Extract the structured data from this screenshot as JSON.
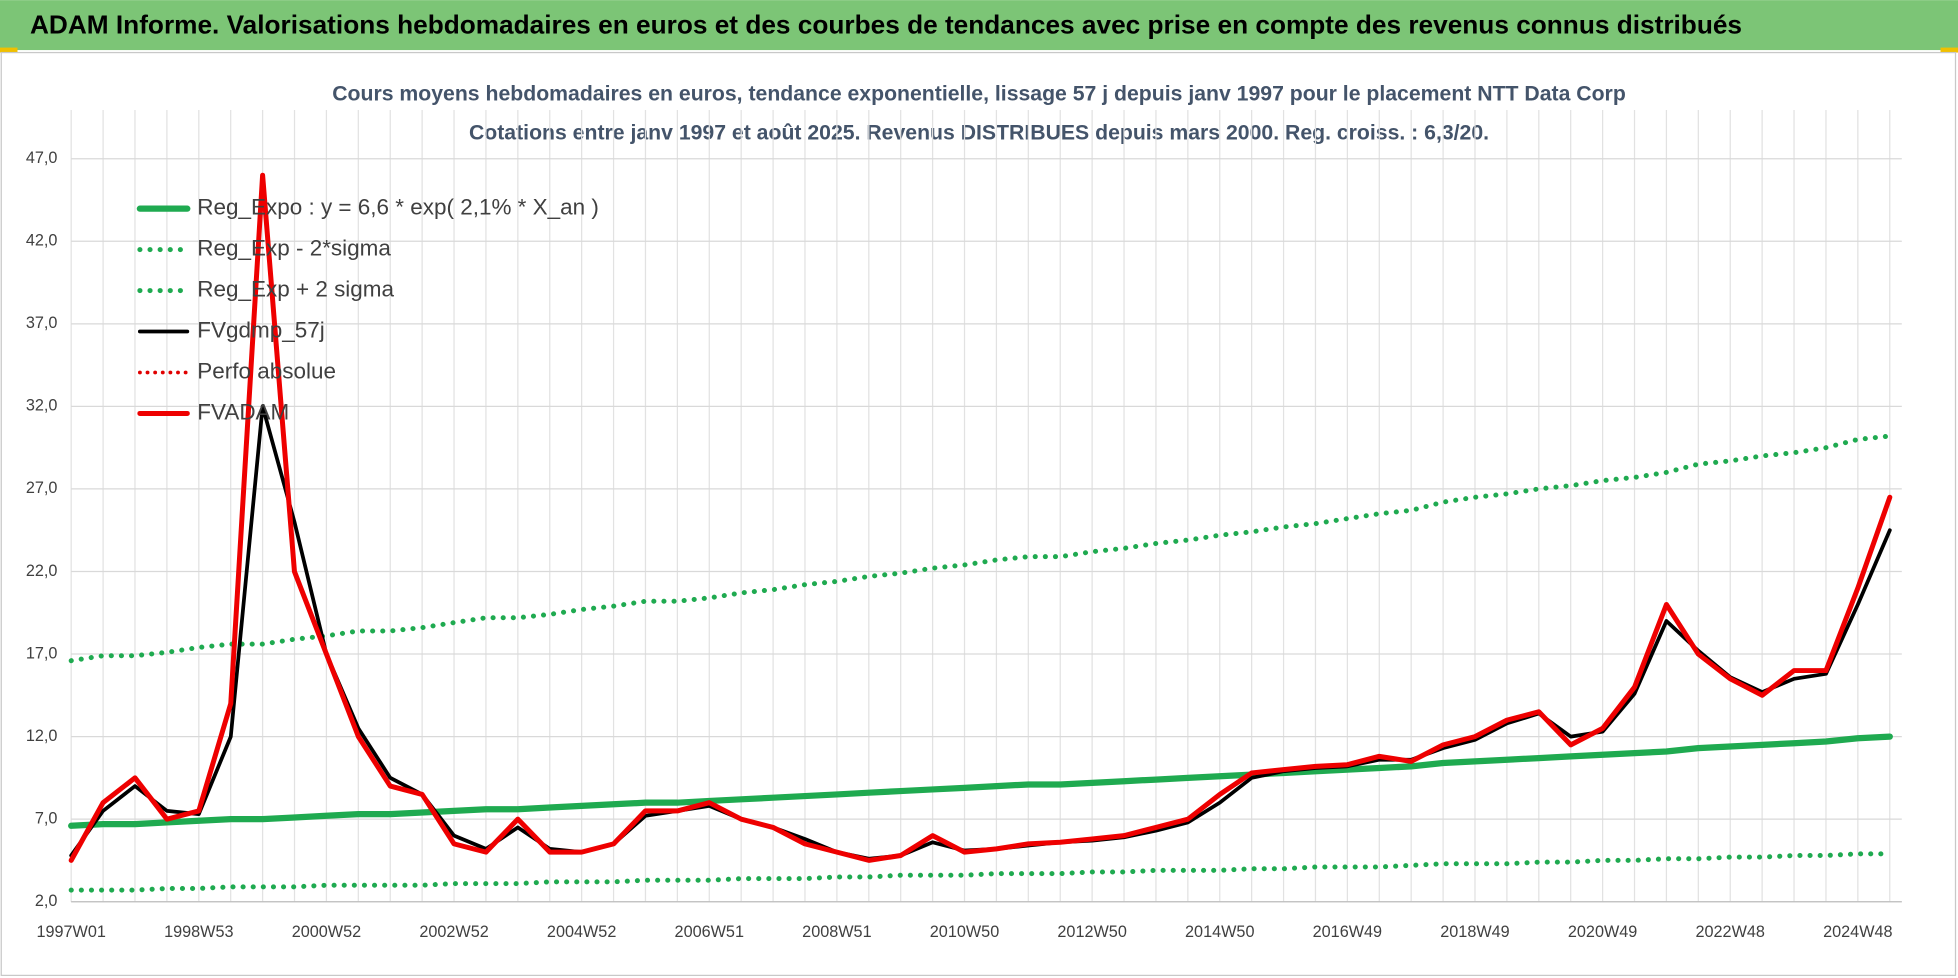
{
  "header": {
    "title": "ADAM Informe. Valorisations hebdomadaires en euros et des courbes de tendances avec prise en compte des revenus connus distribués"
  },
  "chart_data": {
    "type": "line",
    "title": "Cours moyens hebdomadaires en euros, tendance exponentielle, lissage 57 j depuis janv 1997 pour le placement NTT Data Corp",
    "subtitle": "Cotations entre janv 1997 et août 2025.  Revenus DISTRIBUES depuis mars 2000. Reg. croiss. : 6,3/20.",
    "categories": [
      "1997W01",
      null,
      null,
      null,
      "1998W53",
      null,
      null,
      null,
      "2000W52",
      null,
      null,
      null,
      "2002W52",
      null,
      null,
      null,
      "2004W52",
      null,
      null,
      null,
      "2006W51",
      null,
      null,
      null,
      "2008W51",
      null,
      null,
      null,
      "2010W50",
      null,
      null,
      null,
      "2012W50",
      null,
      null,
      null,
      "2014W50",
      null,
      null,
      null,
      "2016W49",
      null,
      null,
      null,
      "2018W49",
      null,
      null,
      null,
      "2020W49",
      null,
      null,
      null,
      "2022W48",
      null,
      null,
      null,
      "2024W48",
      null
    ],
    "ylim": [
      2,
      47
    ],
    "yticks": [
      {
        "value": 2,
        "label": "2,0"
      },
      {
        "value": 7,
        "label": "7,0"
      },
      {
        "value": 12,
        "label": "12,0"
      },
      {
        "value": 17,
        "label": "17,0"
      },
      {
        "value": 22,
        "label": "22,0"
      },
      {
        "value": 27,
        "label": "27,0"
      },
      {
        "value": 32,
        "label": "32,0"
      },
      {
        "value": 37,
        "label": "37,0"
      },
      {
        "value": 42,
        "label": "42,0"
      },
      {
        "value": 47,
        "label": "47,0"
      }
    ],
    "grid": true,
    "legend": "top-left",
    "series": [
      {
        "name": "Reg_Expo : y = 6,6 * exp( 2,1% *  X_an )",
        "color": "#1faa50",
        "dash": "solid",
        "width": 5,
        "values": [
          6.6,
          6.7,
          6.7,
          6.8,
          6.9,
          7.0,
          7.0,
          7.1,
          7.2,
          7.3,
          7.3,
          7.4,
          7.5,
          7.6,
          7.6,
          7.7,
          7.8,
          7.9,
          8.0,
          8.0,
          8.1,
          8.2,
          8.3,
          8.4,
          8.5,
          8.6,
          8.7,
          8.8,
          8.9,
          9.0,
          9.1,
          9.1,
          9.2,
          9.3,
          9.4,
          9.5,
          9.6,
          9.7,
          9.8,
          9.9,
          10.0,
          10.1,
          10.2,
          10.4,
          10.5,
          10.6,
          10.7,
          10.8,
          10.9,
          11.0,
          11.1,
          11.3,
          11.4,
          11.5,
          11.6,
          11.7,
          11.9,
          12.0
        ]
      },
      {
        "name": "Reg_Exp - 2*sigma",
        "color": "#1faa50",
        "dash": "dotted",
        "width": 4,
        "values": [
          2.7,
          2.7,
          2.7,
          2.8,
          2.8,
          2.9,
          2.9,
          2.9,
          3.0,
          3.0,
          3.0,
          3.0,
          3.1,
          3.1,
          3.1,
          3.2,
          3.2,
          3.2,
          3.3,
          3.3,
          3.3,
          3.4,
          3.4,
          3.4,
          3.5,
          3.5,
          3.6,
          3.6,
          3.6,
          3.7,
          3.7,
          3.7,
          3.8,
          3.8,
          3.9,
          3.9,
          3.9,
          4.0,
          4.0,
          4.1,
          4.1,
          4.1,
          4.2,
          4.3,
          4.3,
          4.3,
          4.4,
          4.4,
          4.5,
          4.5,
          4.6,
          4.6,
          4.7,
          4.7,
          4.8,
          4.8,
          4.9,
          4.9
        ]
      },
      {
        "name": "Reg_Exp + 2 sigma",
        "color": "#1faa50",
        "dash": "dotted",
        "width": 4,
        "values": [
          16.6,
          16.9,
          16.9,
          17.1,
          17.4,
          17.6,
          17.6,
          17.9,
          18.1,
          18.4,
          18.4,
          18.6,
          18.9,
          19.2,
          19.2,
          19.4,
          19.7,
          19.9,
          20.2,
          20.2,
          20.4,
          20.7,
          20.9,
          21.2,
          21.4,
          21.7,
          21.9,
          22.2,
          22.4,
          22.7,
          22.9,
          22.9,
          23.2,
          23.4,
          23.7,
          23.9,
          24.2,
          24.4,
          24.7,
          24.9,
          25.2,
          25.5,
          25.7,
          26.2,
          26.5,
          26.7,
          27.0,
          27.2,
          27.5,
          27.7,
          28.0,
          28.5,
          28.7,
          29.0,
          29.2,
          29.5,
          30.0,
          30.2
        ]
      },
      {
        "name": "FVgdmp_57j",
        "color": "#000000",
        "dash": "solid",
        "width": 3,
        "values": [
          4.8,
          7.5,
          9.0,
          7.5,
          7.3,
          12.0,
          32.0,
          25.0,
          17.0,
          12.5,
          9.5,
          8.5,
          6.0,
          5.2,
          6.5,
          5.2,
          5.0,
          5.5,
          7.2,
          7.5,
          7.8,
          7.0,
          6.5,
          5.8,
          5.0,
          4.6,
          4.8,
          5.6,
          5.1,
          5.2,
          5.4,
          5.6,
          5.7,
          5.9,
          6.3,
          6.8,
          8.0,
          9.5,
          9.9,
          10.1,
          10.2,
          10.6,
          10.6,
          11.3,
          11.8,
          12.8,
          13.4,
          12.0,
          12.3,
          14.6,
          19.0,
          17.2,
          15.6,
          14.7,
          15.5,
          15.8,
          20.0,
          24.5
        ]
      },
      {
        "name": "Perfo absolue",
        "color": "#e00000",
        "dash": "dotted",
        "width": 3,
        "values": [
          4.5,
          8.0,
          9.5,
          7.0,
          7.5,
          14.0,
          46.0,
          22.0,
          17.0,
          12.0,
          9.0,
          8.5,
          5.5,
          5.0,
          7.0,
          5.0,
          5.0,
          5.5,
          7.5,
          7.5,
          8.0,
          7.0,
          6.5,
          5.5,
          5.0,
          4.5,
          4.8,
          6.0,
          5.0,
          5.2,
          5.5,
          5.6,
          5.8,
          6.0,
          6.5,
          7.0,
          8.5,
          9.8,
          10.0,
          10.2,
          10.3,
          10.8,
          10.5,
          11.5,
          12.0,
          13.0,
          13.5,
          11.5,
          12.5,
          15.0,
          20.0,
          17.0,
          15.5,
          14.5,
          16.0,
          16.0,
          21.0,
          26.5
        ]
      },
      {
        "name": "FVADAM",
        "color": "#ee0000",
        "dash": "solid",
        "width": 4,
        "values": [
          4.5,
          8.0,
          9.5,
          7.0,
          7.5,
          14.0,
          46.0,
          22.0,
          17.0,
          12.0,
          9.0,
          8.5,
          5.5,
          5.0,
          7.0,
          5.0,
          5.0,
          5.5,
          7.5,
          7.5,
          8.0,
          7.0,
          6.5,
          5.5,
          5.0,
          4.5,
          4.8,
          6.0,
          5.0,
          5.2,
          5.5,
          5.6,
          5.8,
          6.0,
          6.5,
          7.0,
          8.5,
          9.8,
          10.0,
          10.2,
          10.3,
          10.8,
          10.5,
          11.5,
          12.0,
          13.0,
          13.5,
          11.5,
          12.5,
          15.0,
          20.0,
          17.0,
          15.5,
          14.5,
          16.0,
          16.0,
          21.0,
          26.5
        ]
      }
    ]
  }
}
